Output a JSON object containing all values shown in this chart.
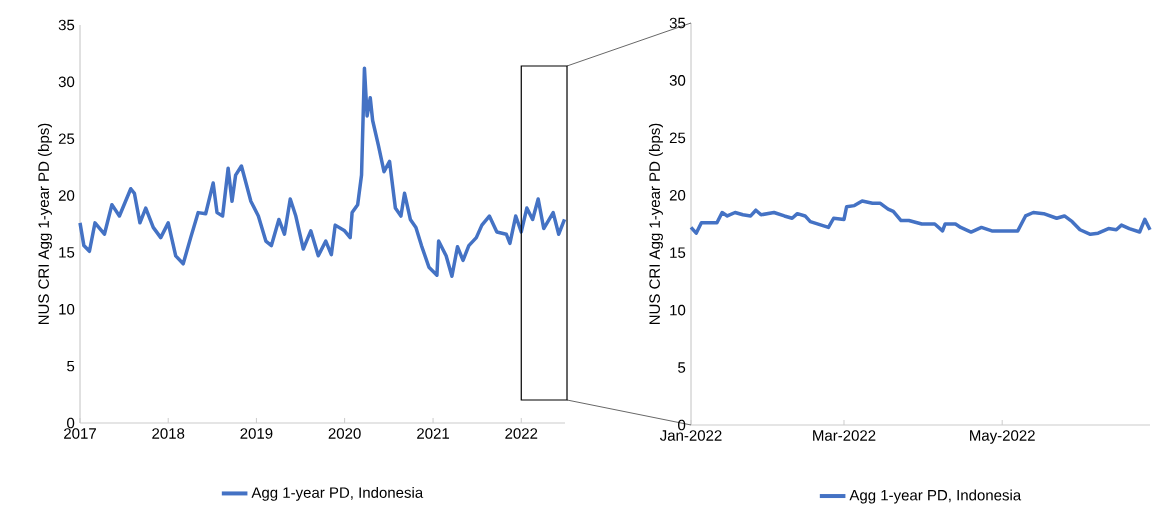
{
  "chart_data": [
    {
      "type": "line",
      "ylabel": "NUS CRI Agg 1-year PD (bps)",
      "x": [
        "2017-01-01",
        "2017-01-17",
        "2017-02-09",
        "2017-03-04",
        "2017-04-12",
        "2017-05-13",
        "2017-06-13",
        "2017-07-30",
        "2017-08-14",
        "2017-09-06",
        "2017-09-30",
        "2017-10-31",
        "2017-12-01",
        "2018-01-01",
        "2018-02-01",
        "2018-03-04",
        "2018-04-04",
        "2018-05-05",
        "2018-06-05",
        "2018-07-06",
        "2018-07-22",
        "2018-08-14",
        "2018-09-06",
        "2018-09-22",
        "2018-10-07",
        "2018-10-31",
        "2018-12-09",
        "2019-01-09",
        "2019-02-09",
        "2019-03-04",
        "2019-04-04",
        "2019-04-27",
        "2019-05-21",
        "2019-06-13",
        "2019-07-14",
        "2019-08-14",
        "2019-09-14",
        "2019-10-15",
        "2019-11-07",
        "2019-11-23",
        "2020-01-01",
        "2020-01-24",
        "2020-02-01",
        "2020-02-24",
        "2020-03-11",
        "2020-03-23",
        "2020-04-03",
        "2020-04-16",
        "2020-04-26",
        "2020-05-20",
        "2020-06-12",
        "2020-07-05",
        "2020-07-29",
        "2020-08-21",
        "2020-09-05",
        "2020-09-29",
        "2020-10-22",
        "2020-11-14",
        "2020-12-15",
        "2021-01-17",
        "2021-01-24",
        "2021-02-24",
        "2021-03-20",
        "2021-04-12",
        "2021-05-05",
        "2021-05-29",
        "2021-06-29",
        "2021-07-22",
        "2021-08-22",
        "2021-09-22",
        "2021-10-31",
        "2021-11-15",
        "2021-12-09",
        "2022-01-01",
        "2022-01-24",
        "2022-02-17",
        "2022-03-12",
        "2022-04-04",
        "2022-05-13",
        "2022-06-05",
        "2022-06-29"
      ],
      "series": [
        {
          "name": "Agg 1-year PD, Indonesia",
          "color": "#4472c4",
          "values": [
            17.6,
            15.6,
            15.1,
            17.6,
            16.6,
            19.2,
            18.2,
            20.6,
            20.2,
            17.6,
            18.9,
            17.2,
            16.3,
            17.6,
            14.7,
            14.0,
            16.3,
            18.5,
            18.4,
            21.1,
            18.5,
            18.2,
            22.4,
            19.5,
            21.8,
            22.6,
            19.5,
            18.2,
            16.0,
            15.6,
            17.9,
            16.6,
            19.7,
            18.2,
            15.3,
            16.9,
            14.7,
            16.0,
            14.8,
            17.4,
            16.9,
            16.3,
            18.5,
            19.2,
            21.8,
            31.2,
            27.0,
            28.6,
            26.6,
            24.4,
            22.1,
            23.0,
            18.9,
            18.2,
            20.2,
            17.9,
            17.2,
            15.6,
            13.7,
            13.0,
            16.0,
            14.7,
            12.9,
            15.5,
            14.3,
            15.6,
            16.3,
            17.4,
            18.2,
            16.8,
            16.6,
            15.8,
            18.2,
            16.8,
            18.9,
            17.9,
            19.7,
            17.1,
            18.5,
            16.6,
            17.9
          ]
        }
      ],
      "xlim": [
        "2017-01-01",
        "2022-07-01"
      ],
      "xticks": [
        "2017",
        "2018",
        "2019",
        "2020",
        "2021",
        "2022"
      ],
      "ylim": [
        0,
        35
      ],
      "yticks": [
        0,
        5,
        10,
        15,
        20,
        25,
        30,
        35
      ],
      "legend": "bottom",
      "grid": false,
      "marker": "none",
      "line_style": "solid"
    },
    {
      "type": "line",
      "ylabel": "NUS CRI Agg 1-year PD (bps)",
      "x": [
        "2022-01-01",
        "2022-01-03",
        "2022-01-05",
        "2022-01-07",
        "2022-01-11",
        "2022-01-13",
        "2022-01-15",
        "2022-01-18",
        "2022-01-21",
        "2022-01-24",
        "2022-01-26",
        "2022-01-28",
        "2022-02-02",
        "2022-02-06",
        "2022-02-09",
        "2022-02-11",
        "2022-02-14",
        "2022-02-16",
        "2022-02-23",
        "2022-02-25",
        "2022-03-01",
        "2022-03-02",
        "2022-03-05",
        "2022-03-08",
        "2022-03-12",
        "2022-03-15",
        "2022-03-18",
        "2022-03-20",
        "2022-03-23",
        "2022-03-26",
        "2022-03-31",
        "2022-04-05",
        "2022-04-08",
        "2022-04-09",
        "2022-04-13",
        "2022-04-15",
        "2022-04-19",
        "2022-04-23",
        "2022-04-27",
        "2022-05-07",
        "2022-05-10",
        "2022-05-13",
        "2022-05-17",
        "2022-05-22",
        "2022-05-25",
        "2022-05-28",
        "2022-05-31",
        "2022-06-04",
        "2022-06-07",
        "2022-06-11",
        "2022-06-14",
        "2022-06-16",
        "2022-06-19",
        "2022-06-23",
        "2022-06-25",
        "2022-06-27"
      ],
      "series": [
        {
          "name": "Agg 1-year PD, Indonesia",
          "color": "#4472c4",
          "values": [
            17.2,
            16.7,
            17.6,
            17.6,
            17.6,
            18.5,
            18.2,
            18.5,
            18.3,
            18.2,
            18.7,
            18.3,
            18.5,
            18.2,
            18.0,
            18.4,
            18.2,
            17.7,
            17.2,
            18.0,
            17.9,
            19.0,
            19.1,
            19.5,
            19.3,
            19.3,
            18.8,
            18.6,
            17.8,
            17.8,
            17.5,
            17.5,
            16.9,
            17.5,
            17.5,
            17.2,
            16.8,
            17.2,
            16.9,
            16.9,
            18.2,
            18.5,
            18.4,
            18.0,
            18.2,
            17.7,
            17.0,
            16.6,
            16.7,
            17.1,
            17.0,
            17.4,
            17.1,
            16.8,
            17.9,
            17.0
          ]
        }
      ],
      "xlim": [
        "2022-01-01",
        "2022-06-27"
      ],
      "xticks": [
        {
          "value": "2022-01",
          "label": "Jan-2022"
        },
        {
          "value": "2022-03",
          "label": "Mar-2022"
        },
        {
          "value": "2022-05",
          "label": "May-2022"
        }
      ],
      "ylim": [
        0,
        35
      ],
      "yticks": [
        0,
        5,
        10,
        15,
        20,
        25,
        30,
        35
      ],
      "legend": "bottom",
      "grid": false,
      "marker": "none",
      "line_style": "solid"
    }
  ]
}
